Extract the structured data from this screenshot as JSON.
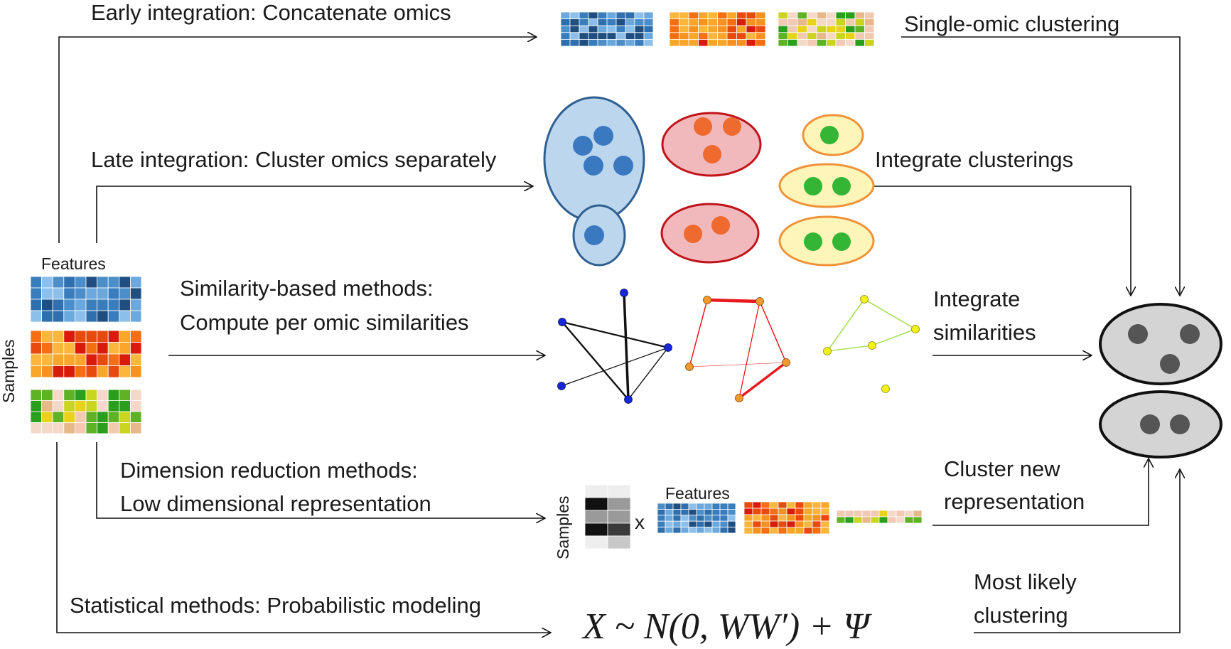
{
  "labels": {
    "early": "Early integration: Concatenate omics",
    "single_omic": "Single-omic clustering",
    "late": "Late integration: Cluster omics separately",
    "integrate_clusterings": "Integrate clusterings",
    "similarity_line1": "Similarity-based methods:",
    "similarity_line2": "Compute per omic similarities",
    "integrate_sim_line1": "Integrate",
    "integrate_sim_line2": "similarities",
    "dimred_line1": "Dimension reduction methods:",
    "dimred_line2": "Low dimensional representation",
    "cluster_new_line1": "Cluster new",
    "cluster_new_line2": "representation",
    "statistical": "Statistical methods: Probabilistic modeling",
    "most_likely_line1": "Most likely",
    "most_likely_line2": "clustering",
    "features_left": "Features",
    "samples_left": "Samples",
    "features_dimred": "Features",
    "samples_dimred": "Samples",
    "times": "x",
    "formula": "X ~ N(0, WW′) + Ψ"
  },
  "colors": {
    "blue_omic": [
      "#2f6fae",
      "#4c8ec9",
      "#6aa8dd",
      "#3a7dbd",
      "#1f4f80",
      "#8cc0ea"
    ],
    "orange_omic": [
      "#f36f12",
      "#f79220",
      "#f9a62a",
      "#e84a0e",
      "#d81b0b",
      "#fbb63b"
    ],
    "mixed_omic": [
      "#f2c9b3",
      "#e6b88a",
      "#c9d51f",
      "#e8d21a",
      "#5fb224",
      "#2a9f1d",
      "#f4d9c9"
    ],
    "blue_cluster_fill": "#bcd6ee",
    "blue_cluster_border": "#2f5f8f",
    "blue_dot": "#3a79c0",
    "red_cluster_fill": "#f2b9bd",
    "red_cluster_border": "#c0141b",
    "orange_dot": "#ee6a2f",
    "yellow_cluster_fill": "#fdf6b8",
    "yellow_cluster_border": "#f0923a",
    "green_dot": "#35b535",
    "final_cluster_fill": "#d4d4d4",
    "final_cluster_border": "#111111",
    "final_dot": "#555555",
    "graph_black_edge": "#111111",
    "graph_blue_node": "#1428d8",
    "graph_red_edge": "#e8191e",
    "graph_orange_node": "#f29a2e",
    "graph_green_edge": "#a9e05a",
    "graph_yellow_node": "#f2f21a"
  }
}
